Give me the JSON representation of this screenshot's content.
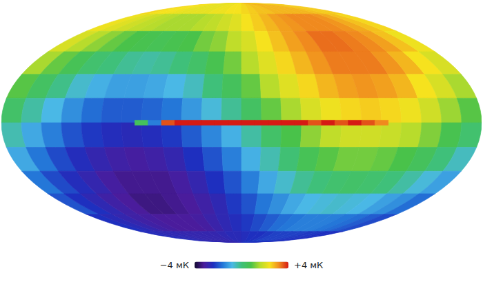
{
  "chart_data": {
    "type": "heatmap",
    "tick_labels": false,
    "lon_bins": [
      180,
      165,
      150,
      135,
      120,
      105,
      90,
      75,
      60,
      45,
      30,
      15,
      0,
      -15,
      -30,
      -45,
      -60,
      -75,
      -90,
      -105,
      -120,
      -135,
      -150,
      -165,
      -180
    ],
    "lat_bins": [
      90,
      75,
      60,
      45,
      30,
      15,
      0,
      -15,
      -30,
      -45,
      -60,
      -75,
      -90
    ],
    "values": [
      [
        2.5,
        2.4,
        2.4,
        2.3,
        2.2,
        2.2,
        2.2,
        2.2,
        2.3,
        2.3,
        2.4,
        2.4,
        2.5,
        2.6,
        2.7,
        2.7,
        2.8,
        2.8,
        2.8,
        2.8,
        2.8,
        2.7,
        2.6,
        2.6
      ],
      [
        2.3,
        2.1,
        1.9,
        1.7,
        1.6,
        1.5,
        1.5,
        1.5,
        1.6,
        1.7,
        1.9,
        2.1,
        2.4,
        2.6,
        2.8,
        3.0,
        3.1,
        3.2,
        3.2,
        3.2,
        3.1,
        2.9,
        2.7,
        2.5
      ],
      [
        2.0,
        1.6,
        1.3,
        1.0,
        0.8,
        0.7,
        0.6,
        0.7,
        0.8,
        1.1,
        1.3,
        1.7,
        2.0,
        2.4,
        2.7,
        3.0,
        3.2,
        3.4,
        3.4,
        3.3,
        3.2,
        3.0,
        2.7,
        2.3
      ],
      [
        1.5,
        1.0,
        0.6,
        0.2,
        0.0,
        -0.2,
        -0.3,
        -0.2,
        0.0,
        0.3,
        0.7,
        1.1,
        1.6,
        2.1,
        2.5,
        2.8,
        3.1,
        3.3,
        3.3,
        3.3,
        3.1,
        2.8,
        2.4,
        2.0
      ],
      [
        0.9,
        0.4,
        -0.1,
        -0.6,
        -0.9,
        -1.1,
        -1.1,
        -1.0,
        -0.8,
        -0.5,
        0.0,
        0.5,
        1.0,
        1.6,
        2.1,
        2.5,
        2.8,
        3.0,
        3.1,
        3.0,
        2.8,
        2.4,
        2.0,
        1.5
      ],
      [
        0.3,
        -0.3,
        -0.8,
        -1.3,
        -1.7,
        -1.9,
        -1.9,
        -1.8,
        -1.6,
        -1.2,
        -0.7,
        -0.2,
        0.4,
        1.0,
        1.5,
        2.0,
        2.3,
        2.5,
        2.6,
        2.5,
        2.3,
        1.9,
        1.4,
        0.9
      ],
      [
        -0.4,
        -1.0,
        -1.5,
        -2.0,
        -2.3,
        -2.5,
        -2.6,
        -2.5,
        -2.3,
        -1.9,
        -1.4,
        -0.9,
        -0.3,
        0.3,
        0.8,
        1.3,
        1.7,
        1.9,
        1.9,
        1.8,
        1.6,
        1.2,
        0.7,
        0.2
      ],
      [
        -1.0,
        -1.6,
        -2.1,
        -2.5,
        -2.8,
        -3.0,
        -3.1,
        -3.0,
        -2.8,
        -2.4,
        -2.0,
        -1.5,
        -0.9,
        -0.4,
        0.1,
        0.6,
        0.9,
        1.1,
        1.1,
        1.0,
        0.8,
        0.5,
        0.0,
        -0.5
      ],
      [
        -1.6,
        -2.1,
        -2.5,
        -2.8,
        -3.1,
        -3.3,
        -3.3,
        -3.3,
        -3.1,
        -2.8,
        -2.4,
        -2.0,
        -1.5,
        -1.0,
        -0.6,
        -0.2,
        0.0,
        0.2,
        0.3,
        0.2,
        0.0,
        -0.3,
        -0.7,
        -1.1
      ],
      [
        -2.0,
        -2.4,
        -2.7,
        -3.0,
        -3.2,
        -3.4,
        -3.4,
        -3.3,
        -3.2,
        -3.0,
        -2.7,
        -2.3,
        -2.0,
        -1.6,
        -1.3,
        -1.0,
        -0.8,
        -0.7,
        -0.6,
        -0.7,
        -0.8,
        -1.1,
        -1.3,
        -1.7
      ],
      [
        -2.4,
        -2.6,
        -2.8,
        -3.0,
        -3.1,
        -3.2,
        -3.2,
        -3.2,
        -3.1,
        -2.9,
        -2.7,
        -2.5,
        -2.3,
        -2.1,
        -1.9,
        -1.7,
        -1.6,
        -1.5,
        -1.5,
        -1.5,
        -1.6,
        -1.7,
        -1.9,
        -2.1
      ],
      [
        -2.5,
        -2.6,
        -2.7,
        -2.7,
        -2.8,
        -2.8,
        -2.8,
        -2.8,
        -2.8,
        -2.7,
        -2.6,
        -2.6,
        -2.5,
        -2.4,
        -2.4,
        -2.3,
        -2.2,
        -2.2,
        -2.2,
        -2.2,
        -2.3,
        -2.3,
        -2.4,
        -2.4
      ]
    ],
    "plane": {
      "lon_bins": [
        80,
        70,
        60,
        50,
        40,
        30,
        20,
        10,
        0,
        -10,
        -20,
        -30,
        -40,
        -50,
        -60,
        -70,
        -80,
        -90,
        -100,
        -110
      ],
      "lat_bins": [
        1.5,
        -1.5
      ],
      "values": [
        [
          0.5,
          -1.5,
          3.6,
          4,
          4,
          4,
          4,
          4,
          4,
          4,
          4,
          4,
          4,
          3.6,
          4,
          3.6,
          4,
          3.6,
          3.2
        ]
      ]
    },
    "colorbar_range": [
      -4,
      4
    ],
    "colorbar_ticks": [
      {
        "value": -4,
        "label": "−4 мК"
      },
      {
        "value": 4,
        "label": "+4 мК"
      }
    ]
  }
}
